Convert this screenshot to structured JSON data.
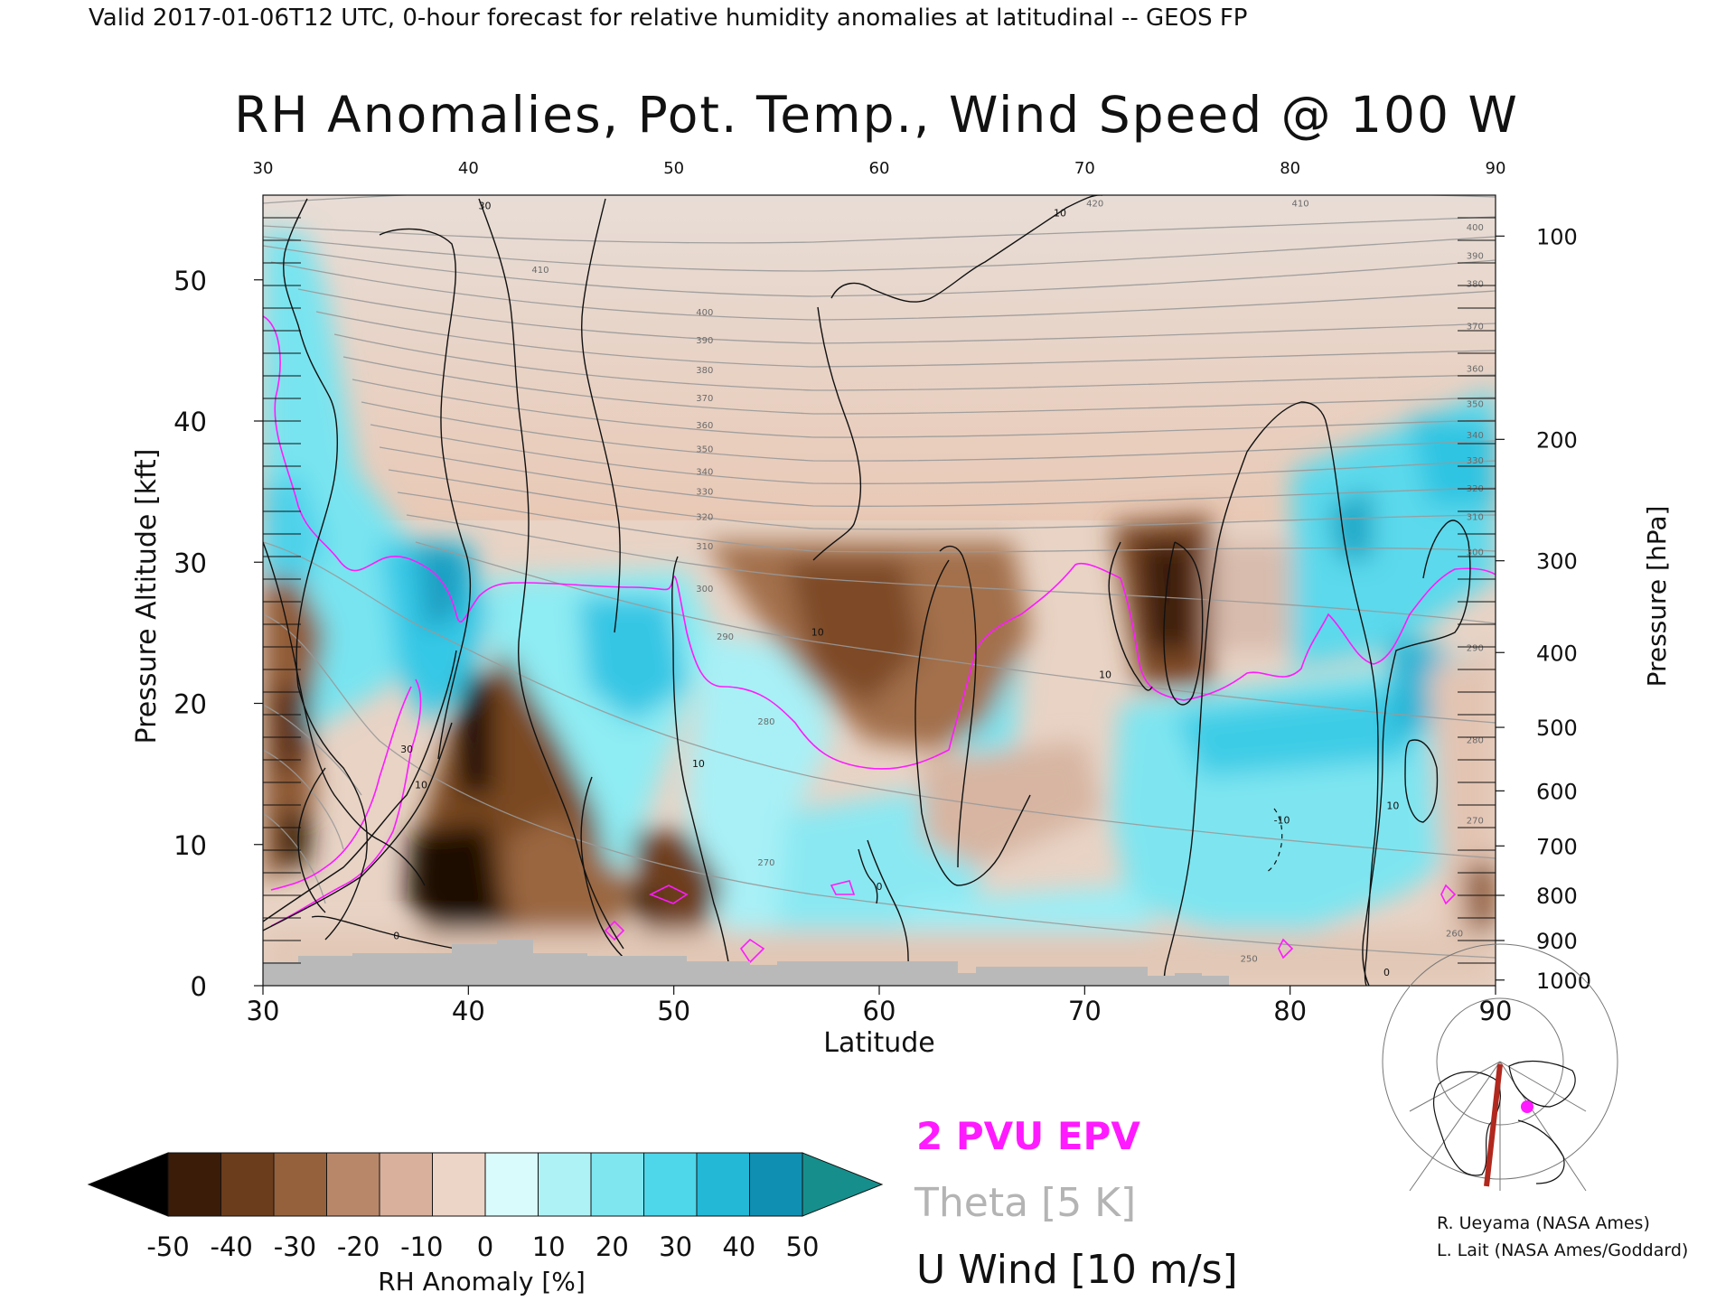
{
  "header": {
    "valid_line": "Valid 2017-01-06T12 UTC, 0-hour forecast for relative humidity anomalies at latitudinal -- GEOS FP",
    "title": "RH Anomalies, Pot. Temp., Wind Speed @ 100 W"
  },
  "chart_data": {
    "type": "heatmap",
    "xlabel": "Latitude",
    "ylabel": "Pressure Altitude [kft]",
    "ylabel_right": "Pressure [hPa]",
    "xlim": [
      30,
      90
    ],
    "ylim": [
      0,
      56
    ],
    "x_ticks": [
      "30",
      "40",
      "50",
      "60",
      "70",
      "80",
      "90"
    ],
    "y_ticks": [
      "0",
      "10",
      "20",
      "30",
      "40",
      "50"
    ],
    "pressure_ticks": [
      {
        "label": "100",
        "kft": 53.1
      },
      {
        "label": "200",
        "kft": 38.7
      },
      {
        "label": "300",
        "kft": 30.1
      },
      {
        "label": "400",
        "kft": 23.6
      },
      {
        "label": "500",
        "kft": 18.3
      },
      {
        "label": "600",
        "kft": 13.8
      },
      {
        "label": "700",
        "kft": 9.9
      },
      {
        "label": "800",
        "kft": 6.4
      },
      {
        "label": "900",
        "kft": 3.2
      },
      {
        "label": "1000",
        "kft": 0.4
      }
    ],
    "theta_labels": [
      {
        "text": "410",
        "x": 43.5,
        "y": 50.5
      },
      {
        "text": "400",
        "x": 51.5,
        "y": 47.5
      },
      {
        "text": "390",
        "x": 51.5,
        "y": 45.5
      },
      {
        "text": "380",
        "x": 51.5,
        "y": 43.4
      },
      {
        "text": "370",
        "x": 51.5,
        "y": 41.4
      },
      {
        "text": "360",
        "x": 51.5,
        "y": 39.5
      },
      {
        "text": "350",
        "x": 51.5,
        "y": 37.8
      },
      {
        "text": "340",
        "x": 51.5,
        "y": 36.2
      },
      {
        "text": "330",
        "x": 51.5,
        "y": 34.8
      },
      {
        "text": "320",
        "x": 51.5,
        "y": 33.0
      },
      {
        "text": "310",
        "x": 51.5,
        "y": 30.9
      },
      {
        "text": "300",
        "x": 51.5,
        "y": 27.9
      },
      {
        "text": "290",
        "x": 52.5,
        "y": 24.5
      },
      {
        "text": "280",
        "x": 54.5,
        "y": 18.5
      },
      {
        "text": "270",
        "x": 54.5,
        "y": 8.5
      },
      {
        "text": "420",
        "x": 70.5,
        "y": 55.2
      },
      {
        "text": "410",
        "x": 80.5,
        "y": 55.2
      },
      {
        "text": "400",
        "x": 89.0,
        "y": 53.5
      },
      {
        "text": "390",
        "x": 89.0,
        "y": 51.5
      },
      {
        "text": "380",
        "x": 89.0,
        "y": 49.5
      },
      {
        "text": "370",
        "x": 89.0,
        "y": 46.5
      },
      {
        "text": "360",
        "x": 89.0,
        "y": 43.5
      },
      {
        "text": "350",
        "x": 89.0,
        "y": 41.0
      },
      {
        "text": "340",
        "x": 89.0,
        "y": 38.8
      },
      {
        "text": "330",
        "x": 89.0,
        "y": 37.0
      },
      {
        "text": "320",
        "x": 89.0,
        "y": 35.0
      },
      {
        "text": "310",
        "x": 89.0,
        "y": 33.0
      },
      {
        "text": "300",
        "x": 89.0,
        "y": 30.5
      },
      {
        "text": "290",
        "x": 89.0,
        "y": 23.7
      },
      {
        "text": "280",
        "x": 89.0,
        "y": 17.2
      },
      {
        "text": "270",
        "x": 89.0,
        "y": 11.5
      },
      {
        "text": "260",
        "x": 88.0,
        "y": 3.5
      },
      {
        "text": "250",
        "x": 78.0,
        "y": 1.7
      }
    ],
    "wind_labels": [
      {
        "text": "30",
        "x": 40.8,
        "y": 55.0
      },
      {
        "text": "10",
        "x": 68.8,
        "y": 54.5
      },
      {
        "text": "30",
        "x": 37.0,
        "y": 16.5
      },
      {
        "text": "10",
        "x": 37.7,
        "y": 14.0
      },
      {
        "text": "10",
        "x": 51.2,
        "y": 15.5
      },
      {
        "text": "0",
        "x": 60.0,
        "y": 6.8
      },
      {
        "text": "0",
        "x": 36.5,
        "y": 3.3
      },
      {
        "text": "10",
        "x": 57.0,
        "y": 24.8
      },
      {
        "text": "10",
        "x": 71.0,
        "y": 21.8
      },
      {
        "text": "10",
        "x": 85.0,
        "y": 12.5
      },
      {
        "text": "-10",
        "x": 79.6,
        "y": 11.5
      },
      {
        "text": "0",
        "x": 84.7,
        "y": 0.7
      }
    ],
    "colorbar": {
      "label": "RH Anomaly [%]",
      "ticks": [
        "-50",
        "-40",
        "-30",
        "-20",
        "-10",
        "0",
        "10",
        "20",
        "30",
        "40",
        "50"
      ],
      "colors": [
        "#000000",
        "#3a1c08",
        "#6b3d1c",
        "#94613c",
        "#b8876a",
        "#d8b09c",
        "#ecd4c6",
        "#d9fbfc",
        "#aef2f6",
        "#7fe6f0",
        "#4ed6ea",
        "#22b8d6",
        "#0f8fb2",
        "#168f8c"
      ]
    },
    "legend": [
      {
        "text": "2 PVU EPV",
        "color": "#ff1aff"
      },
      {
        "text": "Theta [5 K]",
        "color": "#b4b4b4"
      },
      {
        "text": "U Wind [10 m/s]",
        "color": "#111111"
      }
    ],
    "grid": false
  },
  "credits": {
    "line1": "R. Ueyama (NASA Ames)",
    "line2": "L. Lait (NASA Ames/Goddard)"
  },
  "inset": {
    "cross_section_color": "#b0281e",
    "marker_color": "#ff1aff"
  }
}
